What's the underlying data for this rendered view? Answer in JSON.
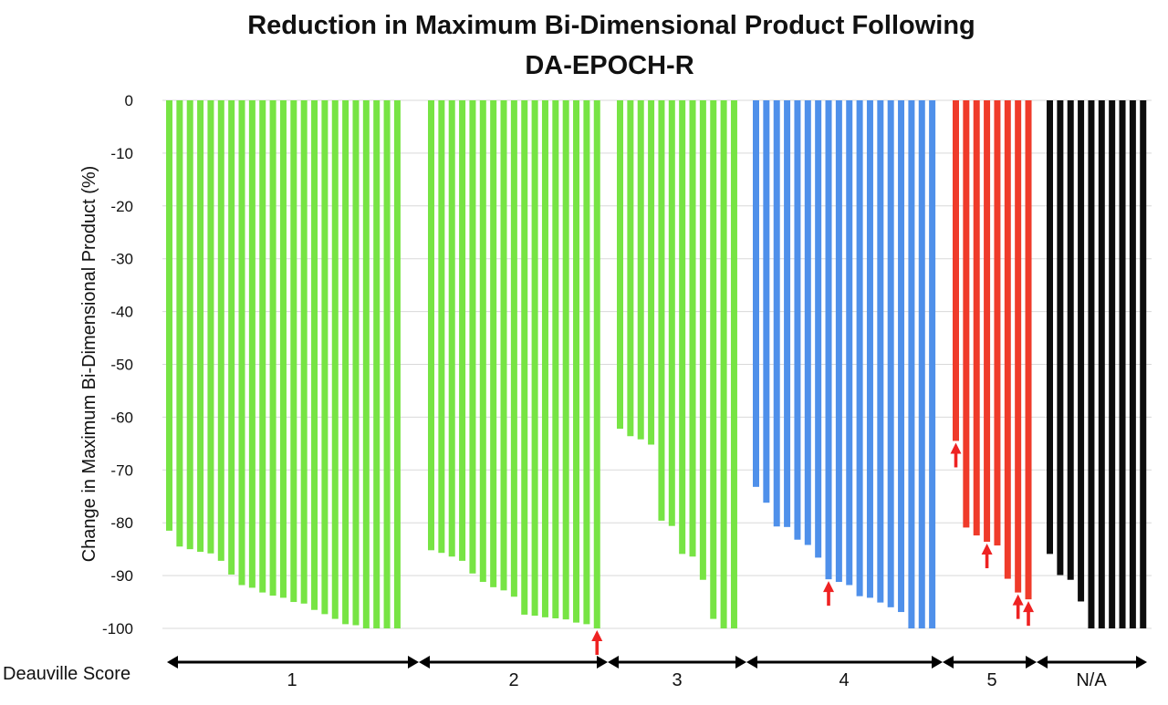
{
  "chart_data": {
    "type": "bar",
    "title_line1": "Reduction in Maximum Bi-Dimensional Product Following",
    "title_line2": "DA-EPOCH-R",
    "ylabel": "Change in Maximum Bi-Dimensional Product (%)",
    "xlabel": "Deauville Score",
    "ylim": [
      -100,
      0
    ],
    "yticks": [
      "0",
      "-10",
      "-20",
      "-30",
      "-40",
      "-50",
      "-60",
      "-70",
      "-80",
      "-90",
      "-100"
    ],
    "grid": true,
    "groups": [
      {
        "label": "1",
        "color": "#77e444",
        "values": [
          -81.5,
          -84.5,
          -85,
          -85.5,
          -85.8,
          -87.2,
          -89.8,
          -91.8,
          -92.3,
          -93.2,
          -93.8,
          -94.2,
          -95,
          -95.3,
          -96.5,
          -97.3,
          -98.2,
          -99.2,
          -99.4,
          -100,
          -100,
          -100,
          -100
        ],
        "arrows": []
      },
      {
        "label": "2",
        "color": "#77e444",
        "values": [
          -85.2,
          -85.7,
          -86.4,
          -87.2,
          -89.6,
          -91.2,
          -92.2,
          -92.8,
          -94,
          -97.4,
          -97.6,
          -97.9,
          -98.1,
          -98.3,
          -98.9,
          -99.2,
          -100
        ],
        "arrows": [
          16
        ]
      },
      {
        "label": "3",
        "color": "#77e444",
        "values": [
          -62.2,
          -63.6,
          -64.2,
          -65.2,
          -79.6,
          -80.6,
          -85.9,
          -86.4,
          -90.8,
          -98.2,
          -100,
          -100
        ],
        "arrows": []
      },
      {
        "label": "4",
        "color": "#4f90ea",
        "values": [
          -73.2,
          -76.2,
          -80.7,
          -80.8,
          -83.2,
          -84.2,
          -86.6,
          -90.7,
          -91.2,
          -91.8,
          -93.9,
          -94.2,
          -95.1,
          -96,
          -96.9,
          -100,
          -100,
          -100
        ],
        "arrows": [
          7
        ]
      },
      {
        "label": "5",
        "color": "#ef3b2a",
        "values": [
          -64.5,
          -80.9,
          -82.4,
          -83.6,
          -84.3,
          -90.6,
          -93.2,
          -94.5
        ],
        "arrows": [
          0,
          3,
          6,
          7
        ]
      },
      {
        "label": "N/A",
        "color": "#0d0d0d",
        "values": [
          -85.9,
          -89.9,
          -90.8,
          -94.9,
          -100,
          -100,
          -100,
          -100,
          -100,
          -100
        ],
        "arrows": []
      }
    ]
  },
  "arrow_color": "#ee2222"
}
